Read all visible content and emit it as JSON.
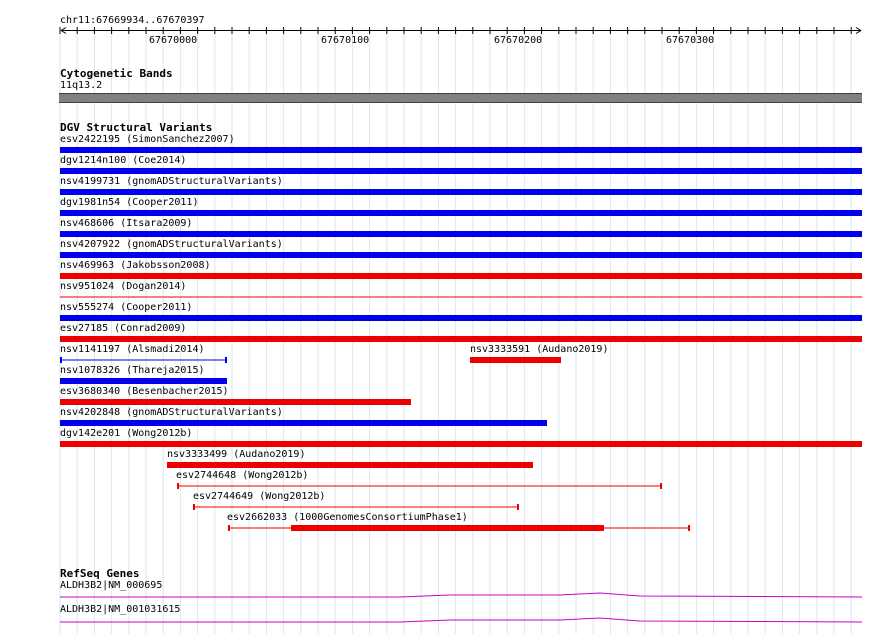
{
  "ruler": {
    "location": "chr11:67669934..67670397",
    "ticks": [
      "67670000",
      "67670100",
      "67670200",
      "67670300"
    ]
  },
  "tracks": {
    "cytoband": {
      "title": "Cytogenetic Bands",
      "band_label": "11q13.2",
      "color": "#808080"
    },
    "dgv": {
      "title": "DGV Structural Variants",
      "features": [
        {
          "label": "esv2422195 (SimonSanchez2007)",
          "color": "#0000ee",
          "style": "thick"
        },
        {
          "label": "dgv1214n100 (Coe2014)",
          "color": "#0000ee",
          "style": "thick"
        },
        {
          "label": "nsv4199731 (gnomADStructuralVariants)",
          "color": "#0000ee",
          "style": "thick"
        },
        {
          "label": "dgv1981n54 (Cooper2011)",
          "color": "#0000ee",
          "style": "thick"
        },
        {
          "label": "nsv468606 (Itsara2009)",
          "color": "#0000ee",
          "style": "thick"
        },
        {
          "label": "nsv4207922 (gnomADStructuralVariants)",
          "color": "#0000ee",
          "style": "thick"
        },
        {
          "label": "nsv469963 (Jakobsson2008)",
          "color": "#ee0000",
          "style": "thick"
        },
        {
          "label": "nsv951024 (Dogan2014)",
          "color": "#ee0000",
          "style": "thin"
        },
        {
          "label": "nsv555274 (Cooper2011)",
          "color": "#0000ee",
          "style": "thick"
        },
        {
          "label": "esv27185 (Conrad2009)",
          "color": "#ee0000",
          "style": "thick"
        },
        {
          "label": "nsv1141197 (Alsmadi2014)",
          "color": "#0000ee",
          "style": "thin-capped"
        },
        {
          "label": "nsv3333591 (Audano2019)",
          "color": "#ee0000",
          "style": "thick"
        },
        {
          "label": "nsv1078326 (Thareja2015)",
          "color": "#0000ee",
          "style": "thick"
        },
        {
          "label": "esv3680340 (Besenbacher2015)",
          "color": "#ee0000",
          "style": "thick"
        },
        {
          "label": "nsv4202848 (gnomADStructuralVariants)",
          "color": "#0000ee",
          "style": "thick"
        },
        {
          "label": "dgv142e201 (Wong2012b)",
          "color": "#ee0000",
          "style": "thick"
        },
        {
          "label": "nsv3333499 (Audano2019)",
          "color": "#ee0000",
          "style": "thick"
        },
        {
          "label": "esv2744648 (Wong2012b)",
          "color": "#ee0000",
          "style": "thin-capped"
        },
        {
          "label": "esv2744649 (Wong2012b)",
          "color": "#ee0000",
          "style": "thin-capped"
        },
        {
          "label": "esv2662033 (1000GenomesConsortiumPhase1)",
          "color": "#ee0000",
          "style": "mixed"
        }
      ]
    },
    "refseq": {
      "title": "RefSeq Genes",
      "color": "#cc00cc",
      "features": [
        {
          "label": "ALDH3B2|NM_000695"
        },
        {
          "label": "ALDH3B2|NM_001031615"
        }
      ]
    }
  }
}
